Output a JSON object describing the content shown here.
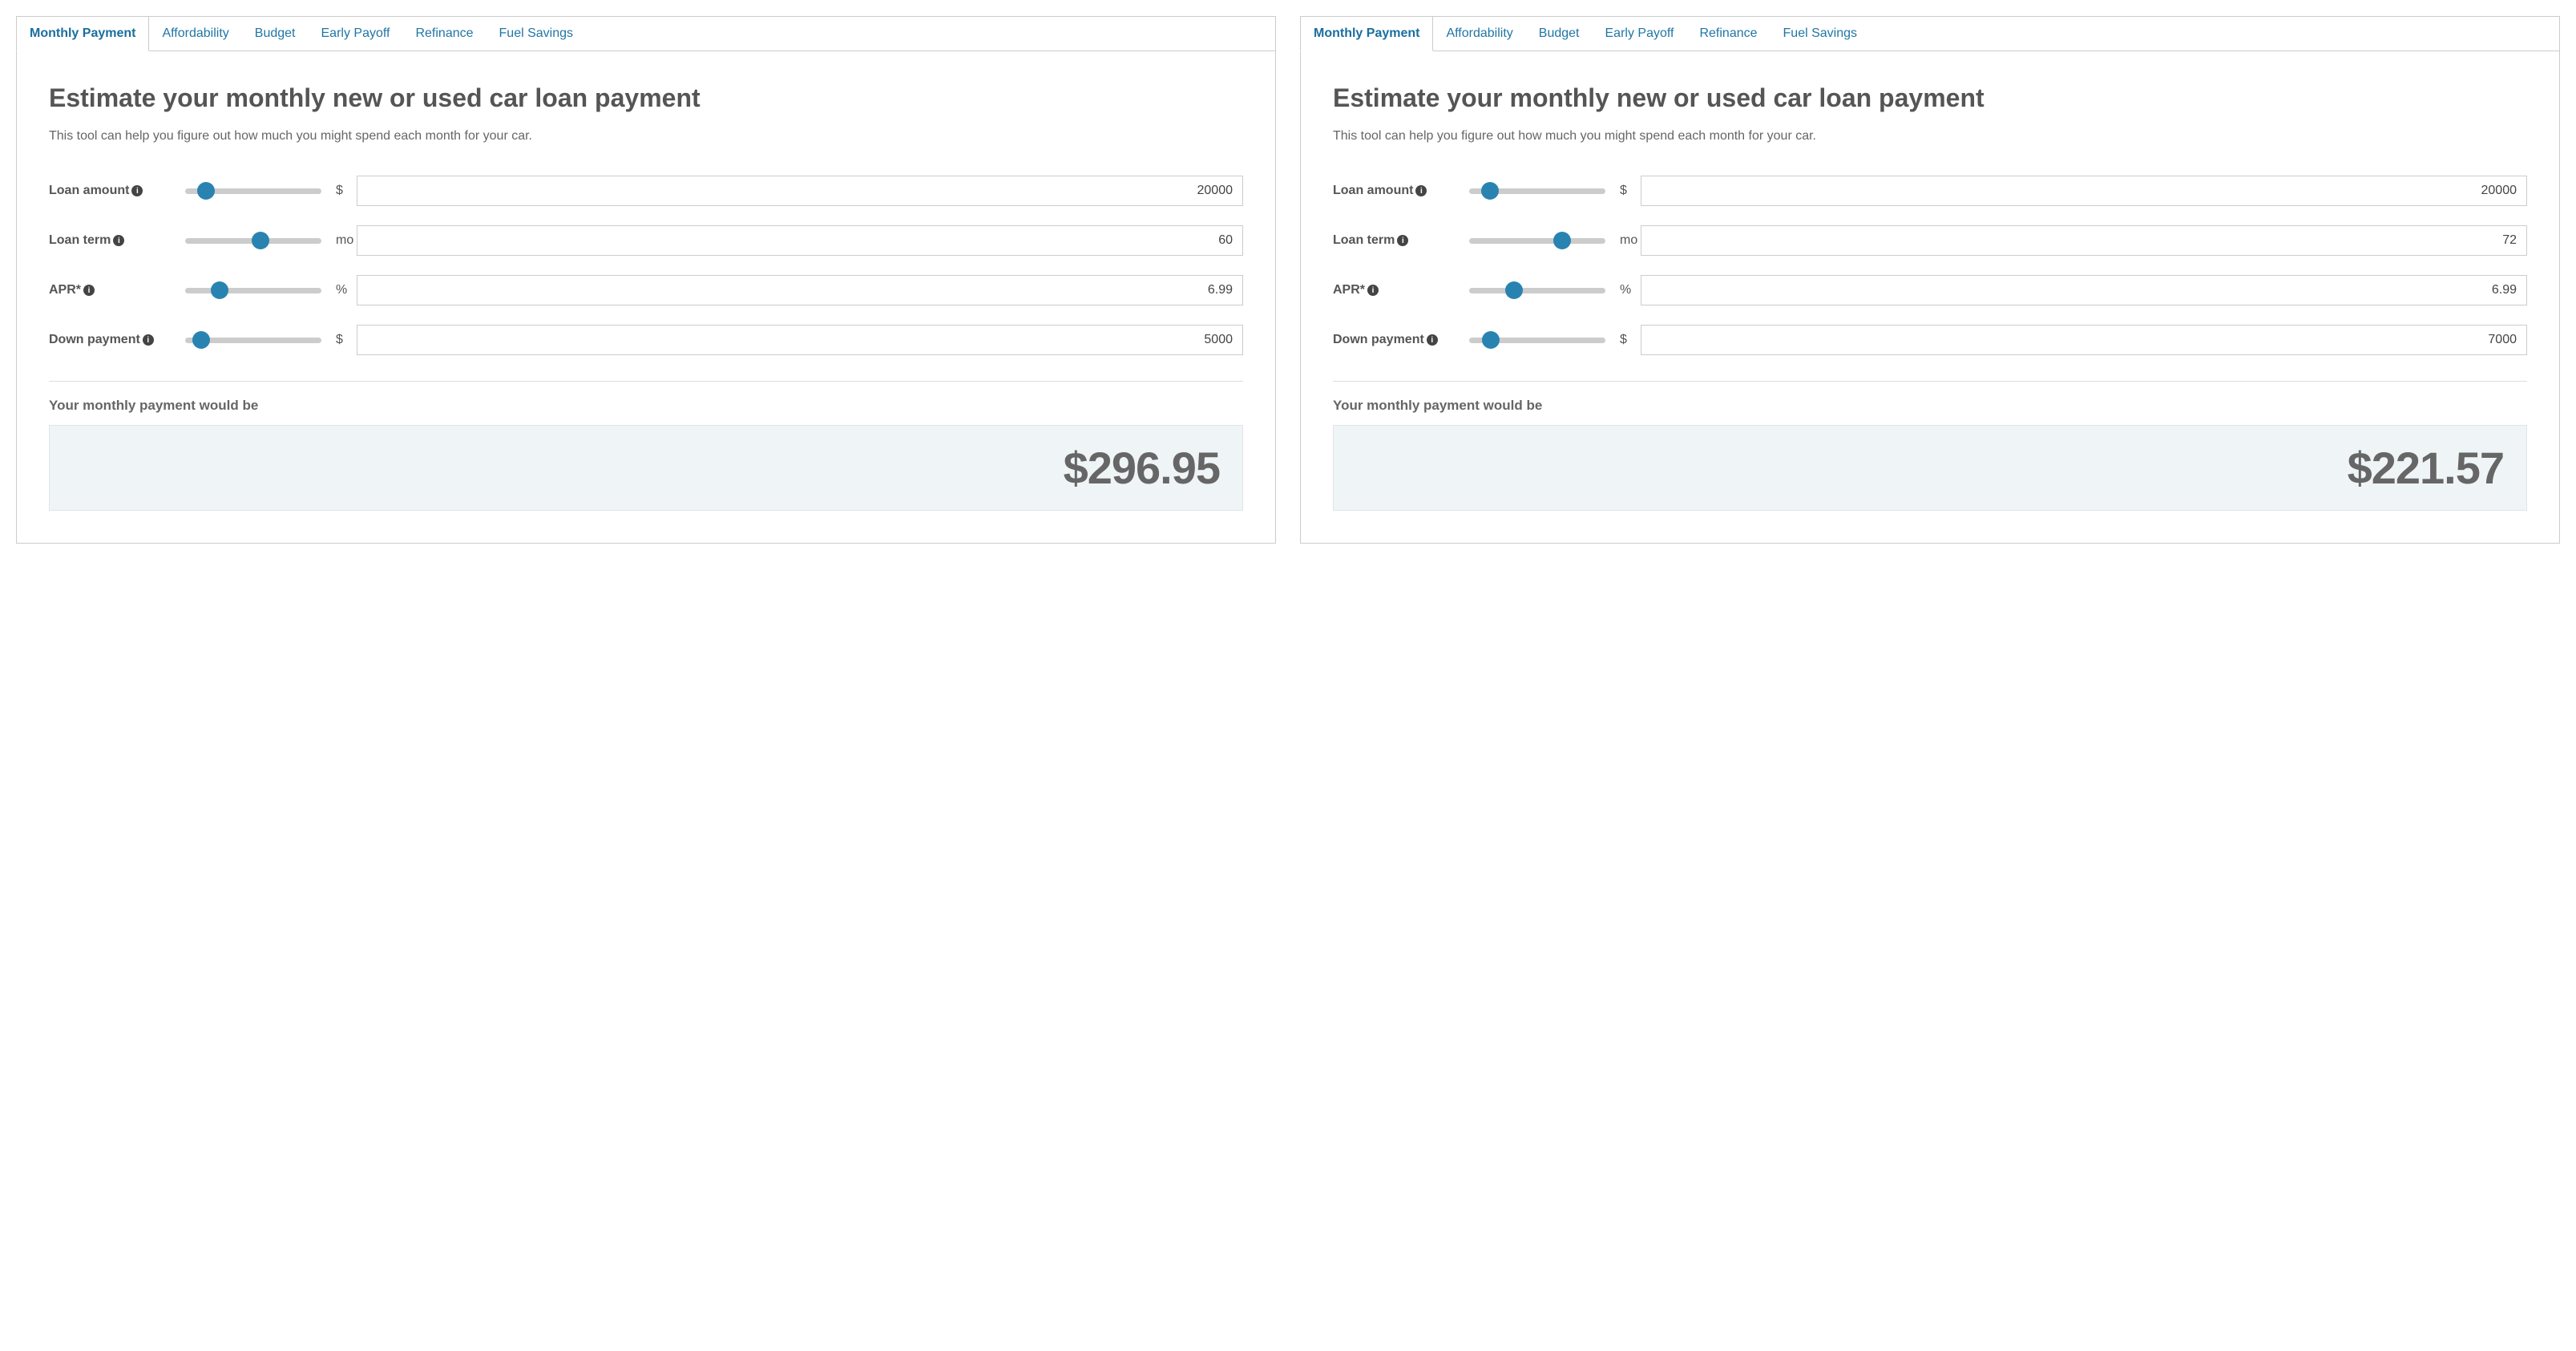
{
  "colors": {
    "tab_link": "#2176a5",
    "tab_active": "#1a6e9e",
    "border": "#cccccc",
    "text": "#555555",
    "text_muted": "#666666",
    "slider_track": "#cccccc",
    "slider_thumb": "#2983b0",
    "info_bg": "#444444",
    "result_bg": "#eff4f6",
    "result_border": "#e0e4e6",
    "background": "#ffffff"
  },
  "typography": {
    "title_fontsize": 32,
    "body_fontsize": 16,
    "result_fontsize": 56
  },
  "tabs": [
    {
      "id": "monthly-payment",
      "label": "Monthly Payment",
      "active": true
    },
    {
      "id": "affordability",
      "label": "Affordability",
      "active": false
    },
    {
      "id": "budget",
      "label": "Budget",
      "active": false
    },
    {
      "id": "early-payoff",
      "label": "Early Payoff",
      "active": false
    },
    {
      "id": "refinance",
      "label": "Refinance",
      "active": false
    },
    {
      "id": "fuel-savings",
      "label": "Fuel Savings",
      "active": false
    }
  ],
  "static": {
    "title": "Estimate your monthly new or used car loan payment",
    "subtitle": "This tool can help you figure out how much you might spend each month for your car.",
    "result_label": "Your monthly payment would be"
  },
  "fields": [
    {
      "id": "loan-amount",
      "label": "Loan amount",
      "unit": "$"
    },
    {
      "id": "loan-term",
      "label": "Loan term",
      "unit": "mo"
    },
    {
      "id": "apr",
      "label": "APR*",
      "unit": "%"
    },
    {
      "id": "down-payment",
      "label": "Down payment",
      "unit": "$"
    }
  ],
  "panels": [
    {
      "values": {
        "loan-amount": {
          "value": "20000",
          "slider_pct": 15
        },
        "loan-term": {
          "value": "60",
          "slider_pct": 55
        },
        "apr": {
          "value": "6.99",
          "slider_pct": 25
        },
        "down-payment": {
          "value": "5000",
          "slider_pct": 12
        }
      },
      "result": "$296.95"
    },
    {
      "values": {
        "loan-amount": {
          "value": "20000",
          "slider_pct": 15
        },
        "loan-term": {
          "value": "72",
          "slider_pct": 68
        },
        "apr": {
          "value": "6.99",
          "slider_pct": 33
        },
        "down-payment": {
          "value": "7000",
          "slider_pct": 16
        }
      },
      "result": "$221.57"
    }
  ]
}
